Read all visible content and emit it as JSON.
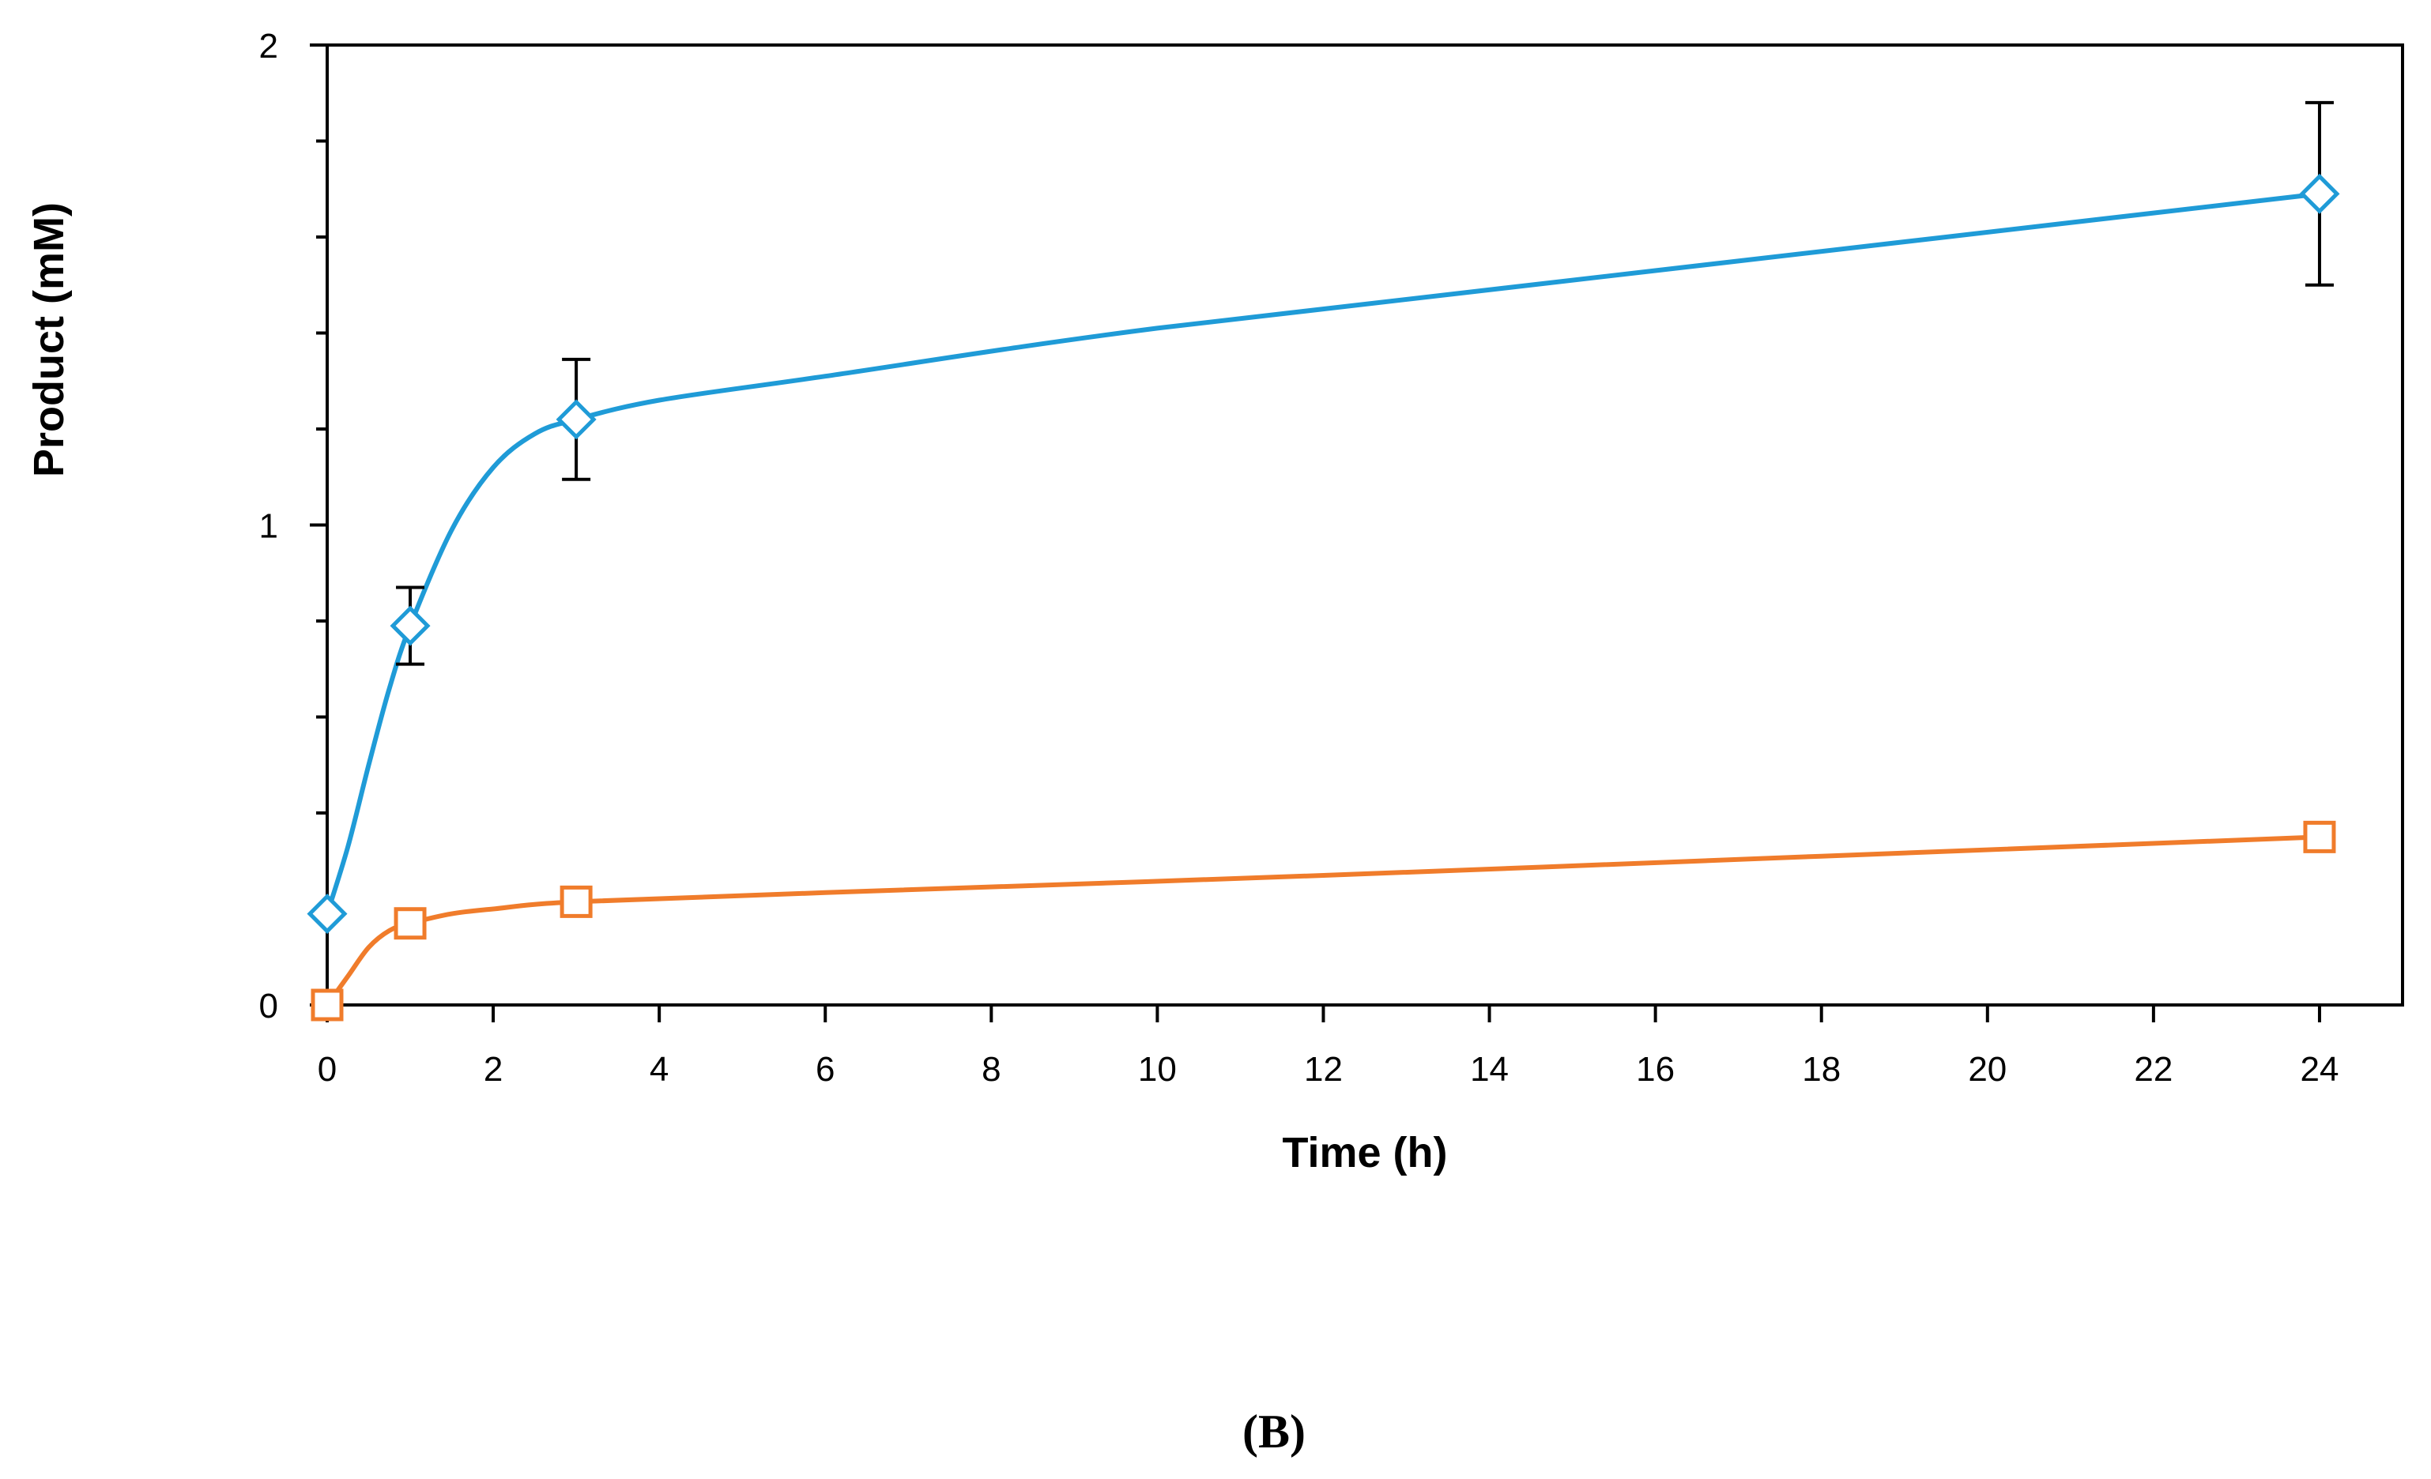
{
  "chart_data": {
    "type": "line",
    "title": "",
    "xlabel": "Time (h)",
    "ylabel": "Product (mM)",
    "xlim": [
      0,
      25
    ],
    "ylim": [
      0,
      2
    ],
    "x_ticks": [
      0,
      2,
      4,
      6,
      8,
      10,
      12,
      14,
      16,
      18,
      20,
      22,
      24
    ],
    "x_tick_labels": [
      "0",
      "2",
      "4",
      "6",
      "8",
      "10",
      "12",
      "14",
      "16",
      "18",
      "20",
      "22",
      "24"
    ],
    "y_major_ticks": [
      0,
      1,
      2
    ],
    "y_tick_labels": [
      "0",
      "1",
      "2"
    ],
    "y_minor_ticks": [
      0.2,
      0.4,
      0.6,
      0.8,
      1.2,
      1.4,
      1.6,
      1.8
    ],
    "grid": false,
    "series": [
      {
        "name": "blue-diamond-series",
        "color": "#1f9bd7",
        "marker": "diamond",
        "x": [
          0,
          1,
          3,
          24
        ],
        "y": [
          0.19,
          0.79,
          1.22,
          1.69
        ],
        "y_err": [
          0,
          0.08,
          0.125,
          0.19
        ],
        "curve_x": [
          0,
          0.25,
          0.5,
          0.75,
          1,
          1.5,
          2,
          2.5,
          3,
          4,
          6,
          10,
          16,
          24
        ],
        "curve_y": [
          0.19,
          0.33,
          0.5,
          0.66,
          0.79,
          0.99,
          1.12,
          1.19,
          1.22,
          1.26,
          1.31,
          1.41,
          1.53,
          1.69
        ]
      },
      {
        "name": "orange-square-series",
        "color": "#f07c2b",
        "marker": "square",
        "x": [
          0,
          1,
          3,
          24
        ],
        "y": [
          0,
          0.17,
          0.215,
          0.35
        ],
        "y_err": [
          0,
          0,
          0,
          0
        ],
        "curve_x": [
          0,
          0.25,
          0.5,
          0.75,
          1,
          1.5,
          2,
          3,
          6,
          12,
          18,
          24
        ],
        "curve_y": [
          0,
          0.06,
          0.12,
          0.155,
          0.17,
          0.19,
          0.2,
          0.215,
          0.234,
          0.27,
          0.31,
          0.35
        ]
      }
    ]
  },
  "figure": {
    "panel_label": "(B)"
  }
}
